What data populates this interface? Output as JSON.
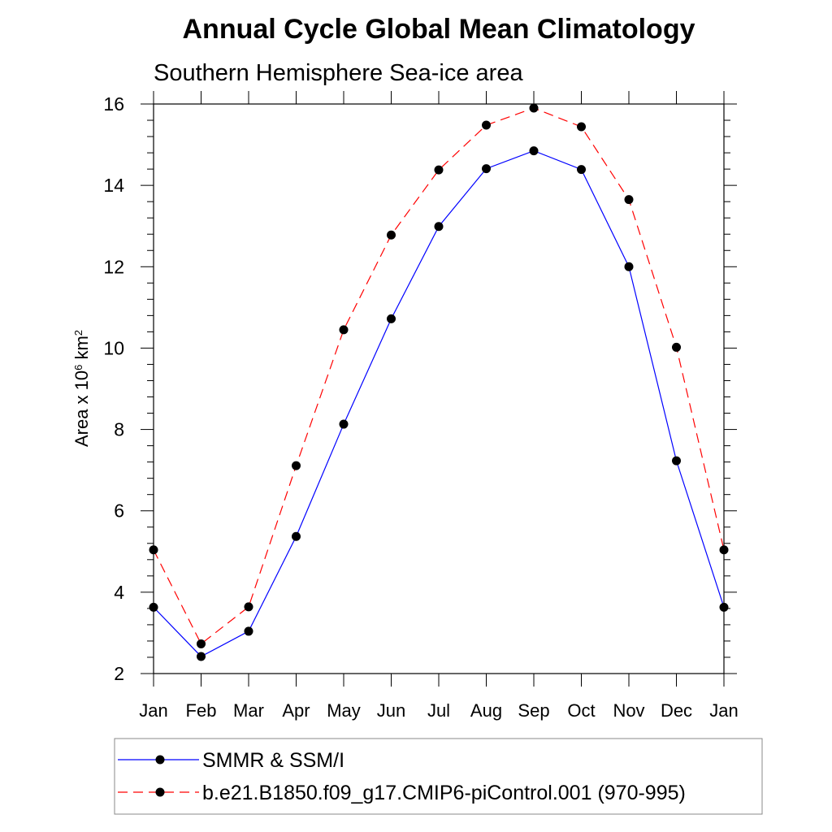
{
  "chart_data": {
    "type": "line",
    "title": "Annual Cycle Global Mean Climatology",
    "subtitle": "Southern Hemisphere Sea-ice area",
    "ylabel": {
      "prefix": "Area x 10",
      "exponent": "6",
      "unit": " km",
      "unit_exponent": "2"
    },
    "xlabel": "",
    "categories": [
      "Jan",
      "Feb",
      "Mar",
      "Apr",
      "May",
      "Jun",
      "Jul",
      "Aug",
      "Sep",
      "Oct",
      "Nov",
      "Dec",
      "Jan"
    ],
    "ylim": [
      2,
      16
    ],
    "yticks": [
      2,
      4,
      6,
      8,
      10,
      12,
      14,
      16
    ],
    "series": [
      {
        "name": "SMMR & SSM/I",
        "color": "#0000ff",
        "dash": "solid",
        "values": [
          3.63,
          2.42,
          3.04,
          5.37,
          8.13,
          10.72,
          12.99,
          14.41,
          14.85,
          14.39,
          12.0,
          7.23,
          3.63
        ]
      },
      {
        "name": "b.e21.B1850.f09_g17.CMIP6-piControl.001 (970-995)",
        "color": "#ff0000",
        "dash": "dashed",
        "values": [
          5.04,
          2.73,
          3.64,
          7.11,
          10.45,
          12.78,
          14.38,
          15.48,
          15.9,
          15.44,
          13.65,
          10.02,
          5.04
        ]
      }
    ],
    "grid": false,
    "legend_position": "bottom"
  }
}
